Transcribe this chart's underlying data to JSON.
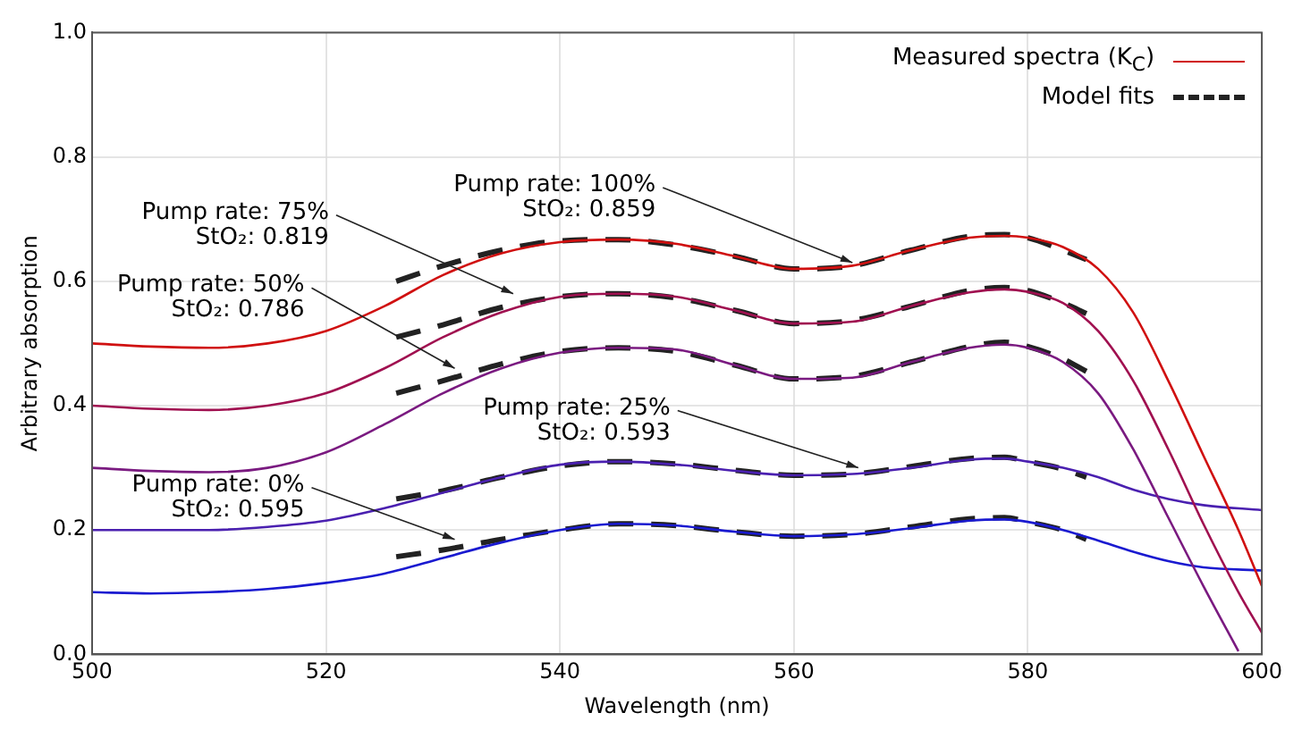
{
  "chart_data": {
    "type": "line",
    "xlabel": "Wavelength (nm)",
    "ylabel": "Arbitrary absorption",
    "xlim": [
      500,
      600
    ],
    "ylim": [
      0,
      1
    ],
    "xticks": [
      500,
      520,
      540,
      560,
      580,
      600
    ],
    "yticks": [
      {
        "value": 0,
        "label": "0.0"
      },
      0.2,
      0.4,
      0.6,
      0.8,
      {
        "value": 1,
        "label": "1.0"
      }
    ],
    "grid": true,
    "legend": "top right",
    "marker": "none",
    "series": [
      {
        "name": "Measured spectra (K$_{C}$)",
        "color": "#d01010",
        "line_style": "solid",
        "x": [
          500,
          505,
          510,
          515,
          520,
          525,
          530,
          535,
          540,
          545,
          550,
          555,
          560,
          565,
          570,
          575,
          578,
          580,
          583,
          586,
          589,
          592,
          595,
          598,
          600
        ],
        "values": [
          0.5,
          0.495,
          0.493,
          0.5,
          0.52,
          0.56,
          0.61,
          0.645,
          0.663,
          0.667,
          0.66,
          0.64,
          0.62,
          0.625,
          0.65,
          0.67,
          0.673,
          0.67,
          0.655,
          0.62,
          0.55,
          0.44,
          0.32,
          0.2,
          0.11
        ]
      },
      {
        "color": "#a01050",
        "line_style": "solid",
        "x": [
          500,
          505,
          510,
          515,
          520,
          525,
          530,
          535,
          540,
          545,
          550,
          555,
          560,
          565,
          570,
          575,
          578,
          580,
          583,
          586,
          589,
          592,
          595,
          598,
          600
        ],
        "values": [
          0.4,
          0.395,
          0.393,
          0.4,
          0.42,
          0.46,
          0.51,
          0.55,
          0.575,
          0.58,
          0.575,
          0.553,
          0.532,
          0.535,
          0.56,
          0.582,
          0.587,
          0.583,
          0.565,
          0.52,
          0.44,
          0.33,
          0.21,
          0.1,
          0.035
        ]
      },
      {
        "color": "#7a1a80",
        "line_style": "solid",
        "x": [
          500,
          505,
          510,
          515,
          520,
          525,
          530,
          535,
          540,
          545,
          550,
          555,
          560,
          565,
          570,
          575,
          578,
          580,
          583,
          586,
          589,
          592,
          595,
          598
        ],
        "values": [
          0.3,
          0.295,
          0.293,
          0.3,
          0.325,
          0.37,
          0.42,
          0.46,
          0.485,
          0.493,
          0.49,
          0.465,
          0.443,
          0.445,
          0.47,
          0.493,
          0.498,
          0.493,
          0.47,
          0.42,
          0.33,
          0.22,
          0.11,
          0.005
        ]
      },
      {
        "color": "#4a20b0",
        "line_style": "solid",
        "x": [
          500,
          505,
          510,
          515,
          520,
          525,
          530,
          535,
          540,
          545,
          550,
          555,
          560,
          565,
          570,
          575,
          578,
          580,
          583,
          586,
          589,
          592,
          595,
          600
        ],
        "values": [
          0.2,
          0.2,
          0.2,
          0.205,
          0.215,
          0.235,
          0.26,
          0.285,
          0.305,
          0.31,
          0.305,
          0.295,
          0.288,
          0.29,
          0.3,
          0.313,
          0.315,
          0.31,
          0.3,
          0.285,
          0.265,
          0.25,
          0.24,
          0.232
        ]
      },
      {
        "color": "#1a1ad0",
        "line_style": "solid",
        "x": [
          500,
          505,
          510,
          515,
          520,
          525,
          530,
          535,
          540,
          545,
          550,
          555,
          560,
          565,
          570,
          575,
          578,
          580,
          583,
          586,
          589,
          592,
          595,
          600
        ],
        "values": [
          0.1,
          0.098,
          0.1,
          0.105,
          0.115,
          0.13,
          0.155,
          0.18,
          0.2,
          0.21,
          0.207,
          0.197,
          0.19,
          0.193,
          0.203,
          0.215,
          0.217,
          0.213,
          0.2,
          0.183,
          0.165,
          0.15,
          0.14,
          0.135
        ]
      },
      {
        "name": "Model fits",
        "color": "#222222",
        "line_style": "dashed",
        "x": [
          526,
          530,
          535,
          540,
          545,
          550,
          555,
          560,
          565,
          570,
          575,
          578,
          580,
          583,
          585
        ],
        "values": [
          0.6,
          0.625,
          0.65,
          0.665,
          0.667,
          0.658,
          0.64,
          0.62,
          0.625,
          0.65,
          0.672,
          0.675,
          0.67,
          0.65,
          0.635
        ]
      },
      {
        "color": "#222222",
        "line_style": "dashed",
        "x": [
          526,
          530,
          535,
          540,
          545,
          550,
          555,
          560,
          565,
          570,
          575,
          578,
          580,
          583,
          585
        ],
        "values": [
          0.51,
          0.53,
          0.558,
          0.575,
          0.58,
          0.573,
          0.553,
          0.532,
          0.537,
          0.56,
          0.585,
          0.59,
          0.585,
          0.565,
          0.548
        ]
      },
      {
        "color": "#222222",
        "line_style": "dashed",
        "x": [
          526,
          530,
          535,
          540,
          545,
          550,
          555,
          560,
          565,
          570,
          575,
          578,
          580,
          583,
          585
        ],
        "values": [
          0.42,
          0.44,
          0.467,
          0.487,
          0.493,
          0.487,
          0.465,
          0.443,
          0.447,
          0.47,
          0.495,
          0.502,
          0.495,
          0.475,
          0.455
        ]
      },
      {
        "color": "#222222",
        "line_style": "dashed",
        "x": [
          526,
          530,
          535,
          540,
          545,
          550,
          555,
          560,
          565,
          570,
          575,
          578,
          580,
          583,
          585
        ],
        "values": [
          0.25,
          0.263,
          0.285,
          0.303,
          0.31,
          0.306,
          0.296,
          0.288,
          0.29,
          0.302,
          0.315,
          0.317,
          0.31,
          0.298,
          0.285
        ]
      },
      {
        "color": "#222222",
        "line_style": "dashed",
        "x": [
          526,
          530,
          535,
          540,
          545,
          550,
          555,
          560,
          565,
          570,
          575,
          578,
          580,
          583,
          585
        ],
        "values": [
          0.157,
          0.168,
          0.185,
          0.2,
          0.21,
          0.207,
          0.197,
          0.19,
          0.193,
          0.205,
          0.218,
          0.22,
          0.213,
          0.2,
          0.185
        ]
      }
    ],
    "annotations": [
      {
        "text": "Pump rate: 100%\nStO₂: 0.859",
        "x": 565,
        "y": 0.63
      },
      {
        "text": "Pump rate: 75%\nStO₂: 0.819",
        "x": 536,
        "y": 0.58
      },
      {
        "text": "Pump rate: 50%\nStO₂: 0.786",
        "x": 531,
        "y": 0.46
      },
      {
        "text": "Pump rate: 25%\nStO₂: 0.593",
        "x": 565.5,
        "y": 0.3
      },
      {
        "text": "Pump rate: 0%\nStO₂: 0.595",
        "x": 531,
        "y": 0.185
      }
    ]
  }
}
